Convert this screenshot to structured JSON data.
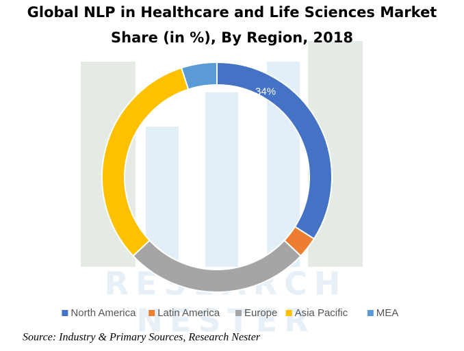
{
  "chart_data": {
    "type": "donut",
    "title_lines": [
      "Global NLP in Healthcare and Life Sciences Market",
      "Share (in %), By Region, 2018"
    ],
    "categories": [
      "North America",
      "Latin America",
      "Europe",
      "Asia Pacific",
      "MEA"
    ],
    "values": [
      34,
      3,
      26,
      32,
      5
    ],
    "value_labels": [
      "34%",
      null,
      null,
      null,
      null
    ],
    "colors": [
      "#4472c4",
      "#ed7d31",
      "#a5a5a5",
      "#ffc000",
      "#5b9bd5"
    ],
    "legend": "bottom",
    "watermark": [
      "RESEARCH",
      "NESTER"
    ],
    "source": "Source: Industry & Primary Sources, Research Nester"
  }
}
